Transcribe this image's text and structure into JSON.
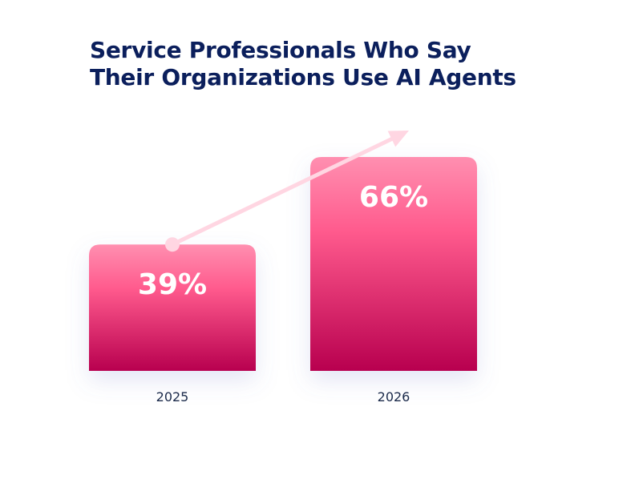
{
  "chart_data": {
    "type": "bar",
    "title_line1": "Service Professionals Who Say",
    "title_line2": "Their Organizations Use AI Agents",
    "categories": [
      "2025",
      "2026"
    ],
    "values": [
      39,
      66
    ],
    "value_labels": [
      "39%",
      "66%"
    ],
    "ylim": [
      0,
      100
    ],
    "grid": false,
    "colors": {
      "bar_top": "#ff8fb0",
      "bar_mid": "#ff5a8d",
      "bar_bottom": "#b8004f",
      "arrow": "#ffd6e2",
      "title": "#0b1f5c"
    }
  }
}
